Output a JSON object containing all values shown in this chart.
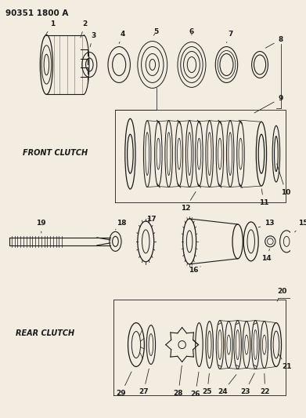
{
  "title": "90351 1800 A",
  "bg": "#f2ede0",
  "lc": "#1a1a1a",
  "figsize": [
    3.91,
    5.33
  ],
  "dpi": 100,
  "front_clutch_label": "FRONT CLUTCH",
  "rear_clutch_label": "REAR CLUTCH"
}
